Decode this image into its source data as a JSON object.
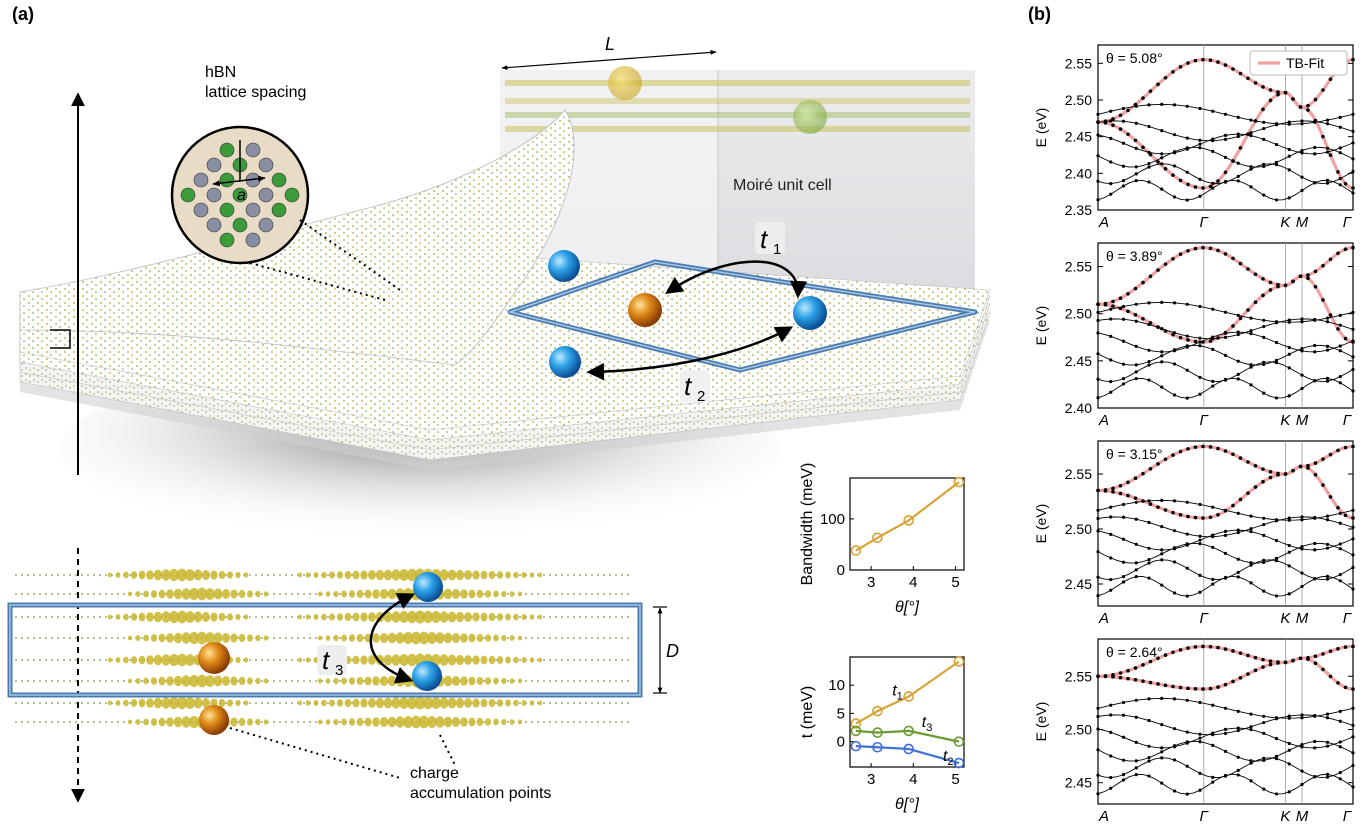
{
  "panel_a": {
    "label": "(a)",
    "hbn_label_line1": "hBN",
    "hbn_label_line2": "lattice spacing",
    "spacing_symbol": "a",
    "moire_label": "Moiré unit cell",
    "length_symbol": "L",
    "depth_symbol": "D",
    "hop1": "t",
    "hop1_sub": "1",
    "hop2": "t",
    "hop2_sub": "2",
    "hop3": "t",
    "hop3_sub": "3",
    "charge_line1": "charge",
    "charge_line2": "accumulation points"
  },
  "panel_b": {
    "label": "(b)",
    "legend": "TB-Fit",
    "ylabel": "E (eV)",
    "kpath": [
      "A",
      "Γ",
      "K",
      "M",
      "Γ"
    ]
  },
  "chart_data": [
    {
      "type": "line",
      "title": "",
      "xlabel": "θ[°]",
      "ylabel": "Bandwidth (meV)",
      "x": [
        2.64,
        3.15,
        3.89,
        5.08
      ],
      "series": [
        {
          "name": "",
          "values": [
            38,
            63,
            97,
            172
          ]
        }
      ],
      "xticks": [
        3,
        4,
        5
      ],
      "yticks": [
        0,
        100
      ],
      "xlim": [
        2.5,
        5.2
      ],
      "ylim": [
        0,
        180
      ],
      "color": "#d8a33a"
    },
    {
      "type": "line",
      "title": "",
      "xlabel": "θ[°]",
      "ylabel": "t (meV)",
      "x": [
        2.64,
        3.15,
        3.89,
        5.08
      ],
      "series": [
        {
          "name": "t1",
          "values": [
            3.2,
            5.4,
            8.0,
            14.2
          ],
          "color": "#d8a33a"
        },
        {
          "name": "t3",
          "values": [
            1.9,
            1.6,
            1.9,
            0.0
          ],
          "color": "#6b9a32"
        },
        {
          "name": "t2",
          "values": [
            -0.8,
            -1.0,
            -1.3,
            -3.8
          ],
          "color": "#3f6fd4"
        }
      ],
      "xticks": [
        3,
        4,
        5
      ],
      "yticks": [
        0,
        5,
        10
      ],
      "xlim": [
        2.5,
        5.2
      ],
      "ylim": [
        -4.5,
        15
      ]
    },
    {
      "type": "line",
      "title": "θ = 5.08°",
      "xlabel": "",
      "ylabel": "E (eV)",
      "categories": [
        "A",
        "Γ",
        "K",
        "M",
        "Γ"
      ],
      "yticks": [
        2.35,
        2.4,
        2.45,
        2.5,
        2.55
      ],
      "ylim": [
        2.35,
        2.575
      ],
      "series": [
        {
          "name": "TB-Fit",
          "values": [
            2.47,
            2.555,
            2.51,
            2.49,
            2.555
          ]
        },
        {
          "name": "TB-Fit",
          "values": [
            2.47,
            2.38,
            2.51,
            2.49,
            2.38
          ]
        }
      ]
    },
    {
      "type": "line",
      "title": "θ = 3.89°",
      "xlabel": "",
      "ylabel": "E (eV)",
      "categories": [
        "A",
        "Γ",
        "K",
        "M",
        "Γ"
      ],
      "yticks": [
        2.4,
        2.45,
        2.5,
        2.55
      ],
      "ylim": [
        2.4,
        2.575
      ],
      "series": [
        {
          "name": "TB-Fit",
          "values": [
            2.51,
            2.57,
            2.53,
            2.54,
            2.57
          ]
        },
        {
          "name": "TB-Fit",
          "values": [
            2.51,
            2.47,
            2.53,
            2.54,
            2.47
          ]
        }
      ]
    },
    {
      "type": "line",
      "title": "θ = 3.15°",
      "xlabel": "",
      "ylabel": "E (eV)",
      "categories": [
        "A",
        "Γ",
        "K",
        "M",
        "Γ"
      ],
      "yticks": [
        2.45,
        2.5,
        2.55
      ],
      "ylim": [
        2.43,
        2.58
      ],
      "series": [
        {
          "name": "TB-Fit",
          "values": [
            2.535,
            2.575,
            2.55,
            2.557,
            2.575
          ]
        },
        {
          "name": "TB-Fit",
          "values": [
            2.535,
            2.51,
            2.55,
            2.557,
            2.51
          ]
        }
      ]
    },
    {
      "type": "line",
      "title": "θ = 2.64°",
      "xlabel": "",
      "ylabel": "E (eV)",
      "categories": [
        "A",
        "Γ",
        "K",
        "M",
        "Γ"
      ],
      "yticks": [
        2.45,
        2.5,
        2.55
      ],
      "ylim": [
        2.43,
        2.585
      ],
      "series": [
        {
          "name": "TB-Fit",
          "values": [
            2.55,
            2.578,
            2.563,
            2.567,
            2.578
          ]
        },
        {
          "name": "TB-Fit",
          "values": [
            2.55,
            2.538,
            2.563,
            2.567,
            2.538
          ]
        }
      ]
    }
  ]
}
